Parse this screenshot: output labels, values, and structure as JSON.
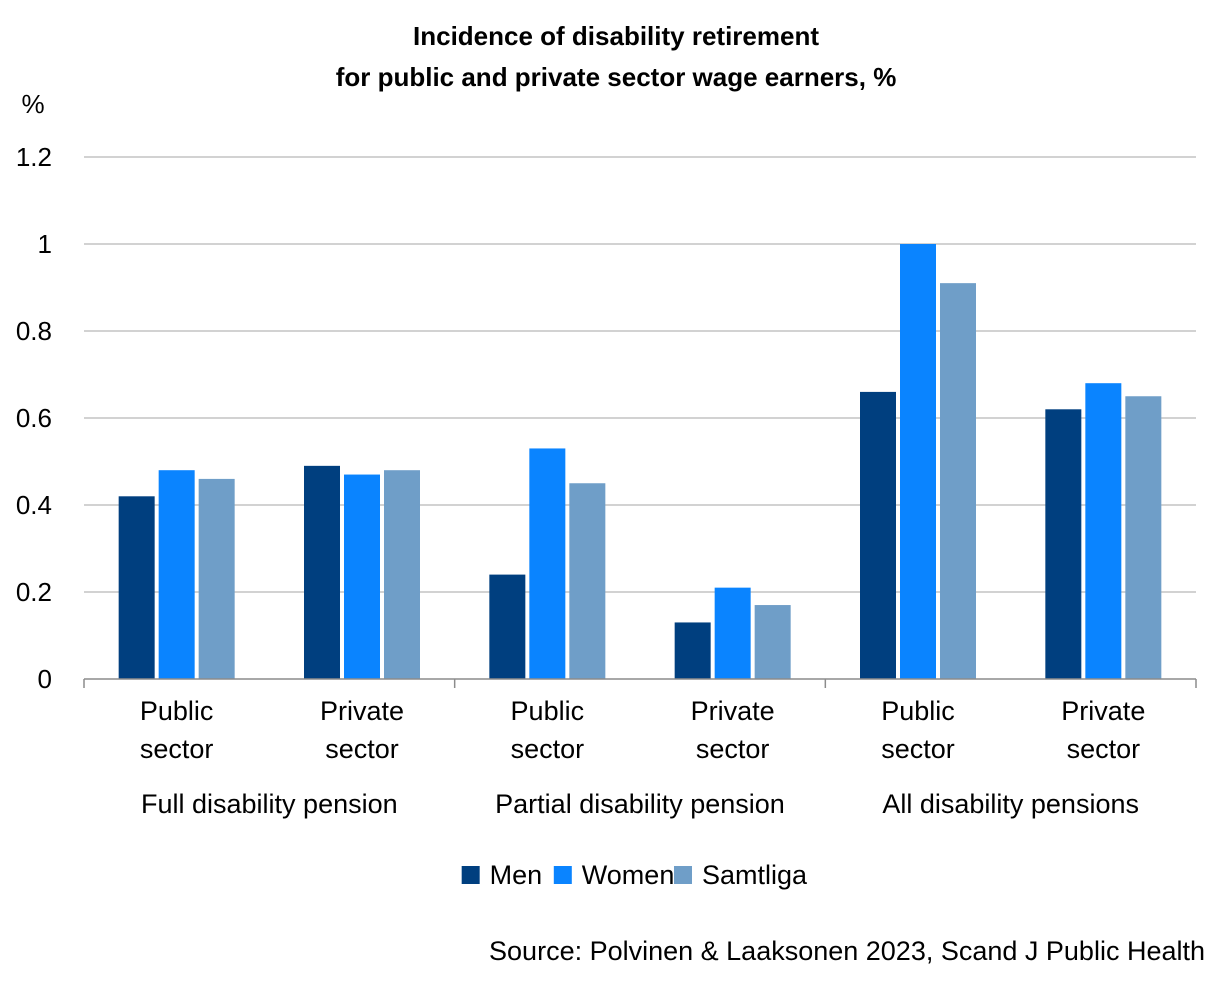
{
  "chart_data": {
    "type": "bar",
    "title_lines": [
      "Incidence of disability retirement",
      "for public and private sector wage earners, %"
    ],
    "ylabel": "%",
    "ylim": [
      0,
      1.2
    ],
    "yticks": [
      0,
      0.2,
      0.4,
      0.6,
      0.8,
      1,
      1.2
    ],
    "ytick_labels": [
      "0",
      "0.2",
      "0.4",
      "0.6",
      "0.8",
      "1",
      "1.2"
    ],
    "grid": true,
    "legend_position": "bottom",
    "groups": [
      {
        "label": "Full disability pension",
        "categories": [
          {
            "label_lines": [
              "Public",
              "sector"
            ],
            "values": [
              0.42,
              0.48,
              0.46
            ]
          },
          {
            "label_lines": [
              "Private",
              "sector"
            ],
            "values": [
              0.49,
              0.47,
              0.48
            ]
          }
        ]
      },
      {
        "label": "Partial disability pension",
        "categories": [
          {
            "label_lines": [
              "Public",
              "sector"
            ],
            "values": [
              0.24,
              0.53,
              0.45
            ]
          },
          {
            "label_lines": [
              "Private",
              "sector"
            ],
            "values": [
              0.13,
              0.21,
              0.17
            ]
          }
        ]
      },
      {
        "label": "All disability pensions",
        "categories": [
          {
            "label_lines": [
              "Public",
              "sector"
            ],
            "values": [
              0.66,
              1.0,
              0.91
            ]
          },
          {
            "label_lines": [
              "Private",
              "sector"
            ],
            "values": [
              0.62,
              0.68,
              0.65
            ]
          }
        ]
      }
    ],
    "series": [
      {
        "name": "Men",
        "color": "#003f7f"
      },
      {
        "name": "Women",
        "color": "#0a84ff"
      },
      {
        "name": "Samtliga",
        "color": "#6f9ec8"
      }
    ],
    "source": "Source: Polvinen & Laaksonen 2023, Scand J Public Health"
  }
}
